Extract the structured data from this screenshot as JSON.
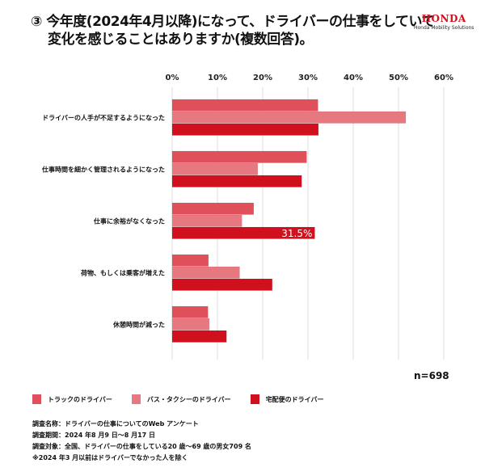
{
  "title": {
    "line1": "③ 今年度(2024年4月以降)になって、ドライバーの仕事をしていて",
    "line2": "変化を感じることはありますか(複数回答)。"
  },
  "logo": {
    "brand": "HONDA",
    "sub": "Honda Mobility Solutions"
  },
  "chart_data": {
    "type": "bar",
    "orientation": "horizontal",
    "categories": [
      "ドライバーの人手が不足するようになった",
      "仕事時間を細かく管理されるようになった",
      "仕事に余裕がなくなった",
      "荷物、もしくは乗客が増えた",
      "休憩時間が減った"
    ],
    "series": [
      {
        "name": "トラックのドライバー",
        "color": "#e0505a",
        "values": [
          32.2,
          29.7,
          18.0,
          8.0,
          7.9
        ]
      },
      {
        "name": "バス・タクシーのドライバー",
        "color": "#e87880",
        "values": [
          51.6,
          18.9,
          15.4,
          14.9,
          8.2
        ]
      },
      {
        "name": "宅配便のドライバー",
        "color": "#d0101c",
        "values": [
          32.3,
          28.6,
          31.5,
          22.1,
          12.0
        ]
      }
    ],
    "xlim": [
      0,
      60
    ],
    "ticks": [
      "0%",
      "10%",
      "20%",
      "30%",
      "40%",
      "50%",
      "60%"
    ],
    "grid": true,
    "legend": "bottom-left",
    "annotations": [
      {
        "series": 2,
        "category": 2,
        "label": "31.5%"
      }
    ],
    "n_label": "n=698"
  },
  "notes": [
    "調査名称：ドライバーの仕事についてのWeb アンケート",
    "調査期間：2024 年8 月9 日〜8 月17 日",
    "調査対象：全国、ドライバーの仕事をしている20 歳〜69 歳の男女709 名",
    "※2024 年3 月以前はドライバーでなかった人を除く"
  ]
}
